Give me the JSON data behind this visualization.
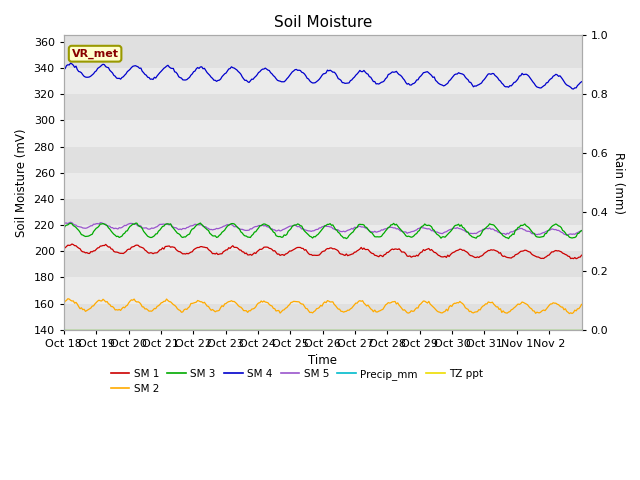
{
  "title": "Soil Moisture",
  "ylabel_left": "Soil Moisture (mV)",
  "ylabel_right": "Rain (mm)",
  "xlabel": "Time",
  "ylim_left": [
    140,
    365
  ],
  "ylim_right": [
    0.0,
    1.0
  ],
  "band_colors": [
    "#e0e0e0",
    "#ebebeb"
  ],
  "plot_bg": "#e0e0e0",
  "label_box_text": "VR_met",
  "label_box_facecolor": "#ffffcc",
  "label_box_edgecolor": "#999900",
  "label_box_textcolor": "#880000",
  "x_tick_labels": [
    "Oct 18",
    "Oct 19",
    "Oct 20",
    "Oct 21",
    "Oct 22",
    "Oct 23",
    "Oct 24",
    "Oct 25",
    "Oct 26",
    "Oct 27",
    "Oct 28",
    "Oct 29",
    "Oct 30",
    "Oct 31",
    "Nov 1",
    "Nov 2"
  ],
  "series": {
    "SM1": {
      "color": "#cc0000",
      "label": "SM 1"
    },
    "SM2": {
      "color": "#ffaa00",
      "label": "SM 2"
    },
    "SM3": {
      "color": "#00aa00",
      "label": "SM 3"
    },
    "SM4": {
      "color": "#0000cc",
      "label": "SM 4"
    },
    "SM5": {
      "color": "#9955cc",
      "label": "SM 5"
    },
    "Precip_mm": {
      "color": "#00bbcc",
      "label": "Precip_mm"
    },
    "TZ_ppt": {
      "color": "#eedd00",
      "label": "TZ ppt"
    }
  }
}
